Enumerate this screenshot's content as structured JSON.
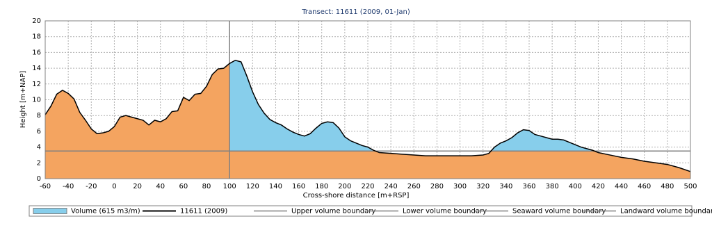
{
  "chart_data": {
    "type": "area",
    "title": "Transect: 11611 (2009, 01-Jan)",
    "x_label": "Cross-shore distance [m+RSP]",
    "y_label": "Height [m+NAP]",
    "x": [
      -60,
      -55,
      -50,
      -45,
      -40,
      -35,
      -30,
      -25,
      -20,
      -15,
      -10,
      -5,
      0,
      5,
      10,
      15,
      20,
      25,
      30,
      35,
      40,
      45,
      50,
      55,
      60,
      65,
      70,
      75,
      80,
      85,
      90,
      95,
      100,
      105,
      110,
      115,
      120,
      125,
      130,
      135,
      140,
      145,
      150,
      155,
      160,
      165,
      170,
      175,
      180,
      185,
      190,
      195,
      200,
      205,
      210,
      215,
      220,
      225,
      230,
      240,
      250,
      260,
      270,
      280,
      290,
      300,
      310,
      320,
      325,
      330,
      335,
      340,
      345,
      350,
      355,
      360,
      365,
      370,
      375,
      380,
      385,
      390,
      395,
      400,
      405,
      410,
      415,
      420,
      430,
      440,
      450,
      460,
      470,
      480,
      490,
      500
    ],
    "series": [
      {
        "name": "11611 (2009)",
        "color": "#000000",
        "fill": "#f4a460",
        "values": [
          8.1,
          9.2,
          10.7,
          11.2,
          10.8,
          10.1,
          8.4,
          7.4,
          6.3,
          5.7,
          5.8,
          6.0,
          6.6,
          7.8,
          8.0,
          7.8,
          7.6,
          7.4,
          6.8,
          7.4,
          7.2,
          7.6,
          8.5,
          8.6,
          10.3,
          9.9,
          10.7,
          10.8,
          11.7,
          13.2,
          13.9,
          14.0,
          14.6,
          15.0,
          14.8,
          13.0,
          11.0,
          9.4,
          8.3,
          7.5,
          7.1,
          6.8,
          6.3,
          5.9,
          5.6,
          5.4,
          5.7,
          6.4,
          7.0,
          7.2,
          7.1,
          6.4,
          5.3,
          4.8,
          4.5,
          4.2,
          4.0,
          3.6,
          3.3,
          3.2,
          3.1,
          3.0,
          2.9,
          2.9,
          2.9,
          2.9,
          2.9,
          3.0,
          3.2,
          4.0,
          4.5,
          4.8,
          5.2,
          5.8,
          6.2,
          6.1,
          5.6,
          5.4,
          5.2,
          5.0,
          5.0,
          4.9,
          4.6,
          4.3,
          4.0,
          3.8,
          3.6,
          3.3,
          3.0,
          2.7,
          2.5,
          2.2,
          2.0,
          1.8,
          1.4,
          0.9
        ]
      }
    ],
    "volume": {
      "name": "Volume (615 m3/m)",
      "color": "#87ceeb"
    },
    "boundaries": [
      {
        "name": "Upper volume boundary",
        "color": "#808080"
      },
      {
        "name": "Lower volume boundary",
        "color": "#808080",
        "y": 3.5
      },
      {
        "name": "Seaward volume boundary",
        "color": "#808080"
      },
      {
        "name": "Landward volume boundary",
        "color": "#808080",
        "x": 100
      }
    ],
    "xlim": [
      -60,
      500
    ],
    "xticks": [
      -60,
      -40,
      -20,
      0,
      20,
      40,
      60,
      80,
      100,
      120,
      140,
      160,
      180,
      200,
      220,
      240,
      260,
      280,
      300,
      320,
      340,
      360,
      380,
      400,
      420,
      440,
      460,
      480,
      500
    ],
    "ylim": [
      0,
      20
    ],
    "yticks": [
      0,
      2,
      4,
      6,
      8,
      10,
      12,
      14,
      16,
      18,
      20
    ],
    "grid": true
  }
}
